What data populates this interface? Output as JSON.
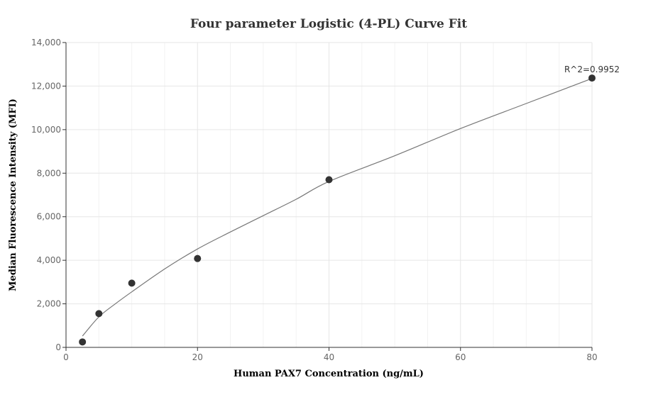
{
  "chart_data": {
    "type": "scatter",
    "title": "Four parameter Logistic (4-PL) Curve Fit",
    "xlabel": "Human PAX7 Concentration (ng/mL)",
    "ylabel": "Median Fluorescence Intensity (MFI)",
    "xlim": [
      0,
      80
    ],
    "ylim": [
      0,
      14000
    ],
    "x_ticks": [
      0,
      20,
      40,
      60,
      80
    ],
    "x_tick_labels": [
      "0",
      "20",
      "40",
      "60",
      "80"
    ],
    "y_ticks": [
      0,
      2000,
      4000,
      6000,
      8000,
      10000,
      12000,
      14000
    ],
    "y_tick_labels": [
      "0",
      "2,000",
      "4,000",
      "6,000",
      "8,000",
      "10,000",
      "12,000",
      "14,000"
    ],
    "grid": true,
    "series": [
      {
        "points": [
          {
            "x": 2.5,
            "y": 250
          },
          {
            "x": 5,
            "y": 1550
          },
          {
            "x": 10,
            "y": 2950
          },
          {
            "x": 20,
            "y": 4080
          },
          {
            "x": 40,
            "y": 7700
          },
          {
            "x": 80,
            "y": 12370
          }
        ]
      }
    ],
    "fit_curve": {
      "model": "4-PL",
      "points": [
        {
          "x": 2.5,
          "y": 520
        },
        {
          "x": 5,
          "y": 1400
        },
        {
          "x": 7.5,
          "y": 2000
        },
        {
          "x": 10,
          "y": 2550
        },
        {
          "x": 15,
          "y": 3600
        },
        {
          "x": 20,
          "y": 4520
        },
        {
          "x": 25,
          "y": 5300
        },
        {
          "x": 30,
          "y": 6050
        },
        {
          "x": 35,
          "y": 6800
        },
        {
          "x": 40,
          "y": 7620
        },
        {
          "x": 50,
          "y": 8800
        },
        {
          "x": 60,
          "y": 10050
        },
        {
          "x": 70,
          "y": 11200
        },
        {
          "x": 80,
          "y": 12350
        }
      ]
    },
    "annotation": {
      "text": "R^2=0.9952",
      "x": 80,
      "y": 12370
    },
    "colors": {
      "points": "#333333",
      "curve": "#777777",
      "grid": "#e6e6e6"
    }
  }
}
